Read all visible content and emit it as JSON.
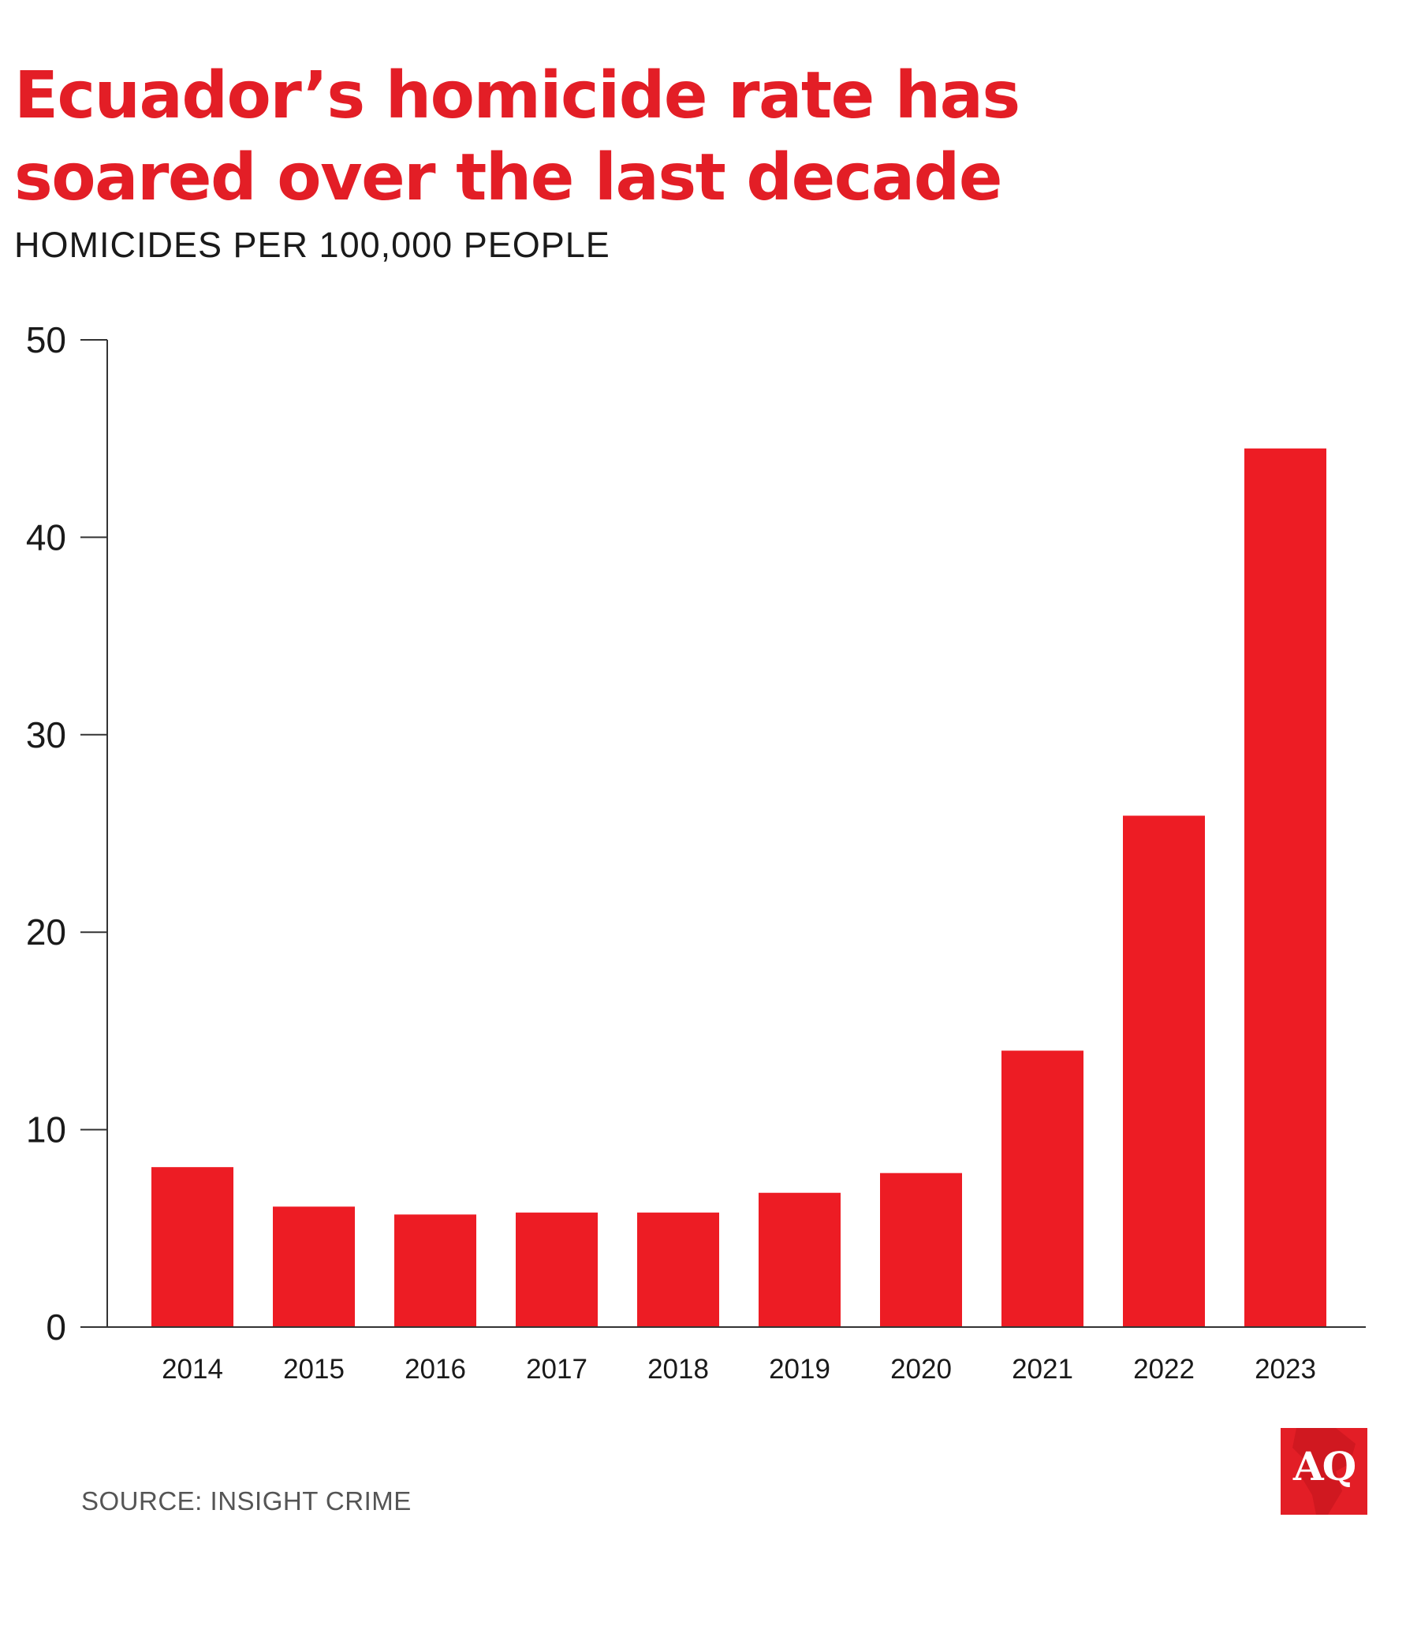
{
  "header": {
    "title": "Ecuador’s homicide rate has soared over the last decade",
    "subtitle": "HOMICIDES PER 100,000 PEOPLE"
  },
  "footer": {
    "source": "SOURCE: INSIGHT CRIME",
    "logo_text": "AQ"
  },
  "colors": {
    "bar": "#ed1c24",
    "accent": "#e31e26",
    "axis": "#333333",
    "text": "#1a1a1a"
  },
  "chart_data": {
    "type": "bar",
    "title": "Ecuador’s homicide rate has soared over the last decade",
    "subtitle": "HOMICIDES PER 100,000 PEOPLE",
    "xlabel": "",
    "ylabel": "",
    "categories": [
      "2014",
      "2015",
      "2016",
      "2017",
      "2018",
      "2019",
      "2020",
      "2021",
      "2022",
      "2023"
    ],
    "values": [
      8.1,
      6.1,
      5.7,
      5.8,
      5.8,
      6.8,
      7.8,
      14.0,
      25.9,
      44.5
    ],
    "ylim": [
      0,
      50
    ],
    "yticks": [
      0,
      10,
      20,
      30,
      40,
      50
    ],
    "grid": false,
    "legend": "none"
  }
}
